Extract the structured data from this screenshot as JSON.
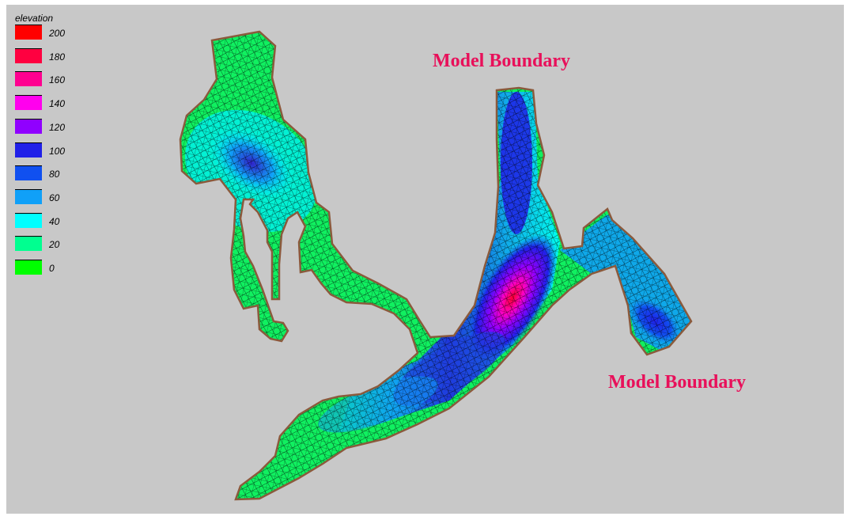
{
  "legend": {
    "title": "elevation",
    "entries": [
      {
        "label": "200",
        "color": "#ff0000"
      },
      {
        "label": "180",
        "color": "#ff0040"
      },
      {
        "label": "160",
        "color": "#ff0090"
      },
      {
        "label": "140",
        "color": "#ff00ee"
      },
      {
        "label": "120",
        "color": "#9000ff"
      },
      {
        "label": "100",
        "color": "#2020e8"
      },
      {
        "label": "80",
        "color": "#1050f0"
      },
      {
        "label": "60",
        "color": "#10a0f8"
      },
      {
        "label": "40",
        "color": "#00ffff"
      },
      {
        "label": "20",
        "color": "#00ff90"
      },
      {
        "label": "0",
        "color": "#00ff00"
      }
    ]
  },
  "annotations": {
    "top": "Model Boundary",
    "right": "Model Boundary"
  },
  "colors": {
    "background": "#c8c8c8",
    "boundary": "#8b5a3c",
    "label": "#e8105a"
  }
}
